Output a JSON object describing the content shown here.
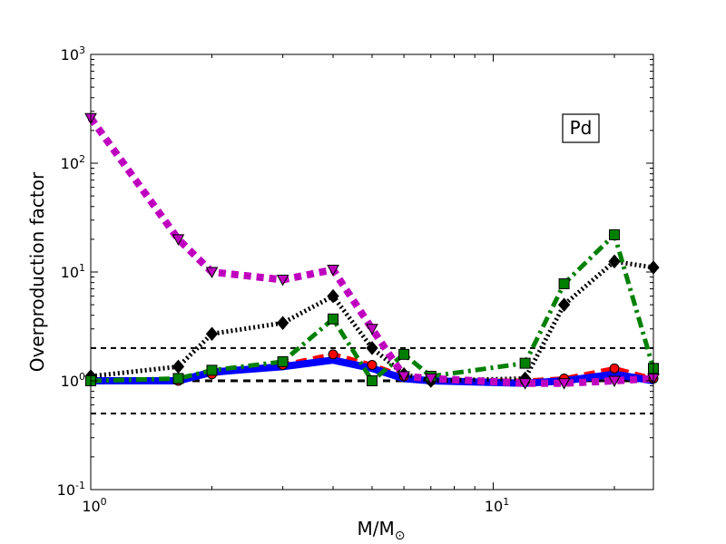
{
  "chart_data": {
    "type": "line",
    "xscale": "log",
    "yscale": "log",
    "xlim": [
      1,
      25
    ],
    "ylim": [
      0.1,
      1000
    ],
    "xlabel": "M/M",
    "xlabel_sub": "⊙",
    "ylabel": "Overproduction factor",
    "x_tick_labels": [
      {
        "value": 1,
        "base": "10",
        "exp": "0"
      },
      {
        "value": 10,
        "base": "10",
        "exp": "1"
      }
    ],
    "y_tick_labels": [
      {
        "value": 0.1,
        "base": "10",
        "exp": "-1"
      },
      {
        "value": 1,
        "base": "10",
        "exp": "0"
      },
      {
        "value": 10,
        "base": "10",
        "exp": "1"
      },
      {
        "value": 100,
        "base": "10",
        "exp": "2"
      },
      {
        "value": 1000,
        "base": "10",
        "exp": "3"
      }
    ],
    "annotation": "Pd",
    "reference_lines": [
      {
        "y": 2.0,
        "style": "dashed-thin"
      },
      {
        "y": 1.0,
        "style": "dashed-thick"
      },
      {
        "y": 0.5,
        "style": "dashed-thin"
      }
    ],
    "series": [
      {
        "color": "#ff0000",
        "linestyle": "dashed",
        "marker": "circle",
        "x": [
          1,
          1.65,
          2,
          3,
          4,
          5,
          6,
          7,
          12,
          15,
          20,
          25
        ],
        "y": [
          1.0,
          1.0,
          1.15,
          1.4,
          1.75,
          1.4,
          1.1,
          1.0,
          1.0,
          1.05,
          1.3,
          1.05
        ]
      },
      {
        "color": "#0000ff",
        "linestyle": "solid",
        "marker": "none",
        "x": [
          1,
          1.65,
          2,
          3,
          4,
          5,
          6,
          7,
          12,
          15,
          20,
          25
        ],
        "y": [
          1.0,
          1.0,
          1.2,
          1.35,
          1.55,
          1.3,
          1.05,
          1.0,
          0.95,
          1.0,
          1.15,
          1.0
        ]
      },
      {
        "color": "#000000",
        "linestyle": "dotted",
        "marker": "diamond",
        "x": [
          1,
          1.65,
          2,
          3,
          4,
          5,
          6,
          7,
          12,
          15,
          20,
          25
        ],
        "y": [
          1.1,
          1.35,
          2.7,
          3.4,
          6.0,
          2.0,
          1.15,
          1.0,
          1.05,
          5.0,
          12.5,
          11.0
        ]
      },
      {
        "color": "#008000",
        "linestyle": "dashdot",
        "marker": "square",
        "x": [
          1,
          1.65,
          2,
          3,
          4,
          5,
          6,
          7,
          12,
          15,
          20,
          25
        ],
        "y": [
          1.0,
          1.05,
          1.25,
          1.5,
          3.7,
          1.0,
          1.75,
          1.1,
          1.45,
          7.8,
          22.0,
          1.3
        ]
      },
      {
        "color": "#bf00bf",
        "linestyle": "dotted-thick",
        "marker": "triangle-down",
        "x": [
          1,
          1.65,
          2,
          3,
          4,
          5,
          6,
          7,
          12,
          15,
          20,
          25
        ],
        "y": [
          260,
          20,
          10,
          8.5,
          10.5,
          3.0,
          1.1,
          1.05,
          0.95,
          0.95,
          1.0,
          1.05
        ]
      }
    ]
  }
}
